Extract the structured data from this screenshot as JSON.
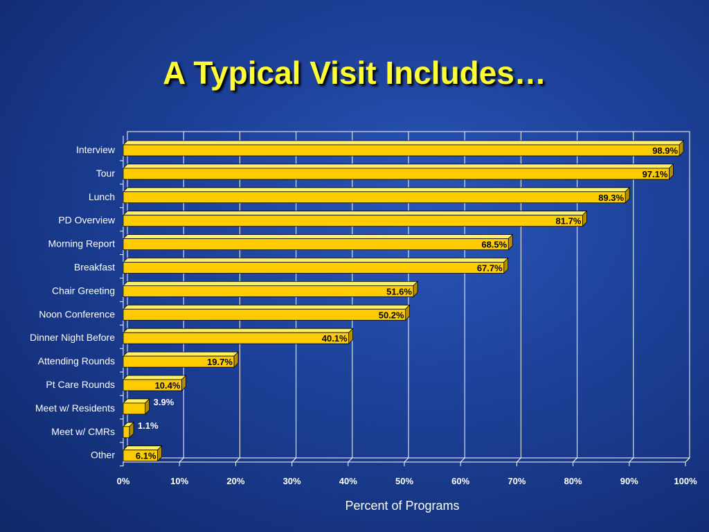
{
  "title": "A Typical Visit Includes…",
  "colors": {
    "bar_front": "#ffcc00",
    "bar_top": "#fff066",
    "bar_side": "#b38f00",
    "grid": "#ffffff",
    "title": "#ffff33"
  },
  "chart_data": {
    "type": "bar",
    "orientation": "horizontal",
    "categories": [
      "Interview",
      "Tour",
      "Lunch",
      "PD Overview",
      "Morning Report",
      "Breakfast",
      "Chair Greeting",
      "Noon Conference",
      "Dinner Night Before",
      "Attending Rounds",
      "Pt Care Rounds",
      "Meet w/ Residents",
      "Meet w/ CMRs",
      "Other"
    ],
    "values": [
      98.9,
      97.1,
      89.3,
      81.7,
      68.5,
      67.7,
      51.6,
      50.2,
      40.1,
      19.7,
      10.4,
      3.9,
      1.1,
      6.1
    ],
    "value_labels": [
      "98.9%",
      "97.1%",
      "89.3%",
      "81.7%",
      "68.5%",
      "67.7%",
      "51.6%",
      "50.2%",
      "40.1%",
      "19.7%",
      "10.4%",
      "3.9%",
      "1.1%",
      "6.1%"
    ],
    "title": "A Typical Visit Includes…",
    "xlabel": "Percent of Programs",
    "ylabel": "",
    "xlim": [
      0,
      100
    ],
    "x_ticks": [
      0,
      10,
      20,
      30,
      40,
      50,
      60,
      70,
      80,
      90,
      100
    ],
    "x_tick_labels": [
      "0%",
      "10%",
      "20%",
      "30%",
      "40%",
      "50%",
      "60%",
      "70%",
      "80%",
      "90%",
      "100%"
    ],
    "grid": "vertical",
    "legend": "none",
    "style": "3d"
  }
}
